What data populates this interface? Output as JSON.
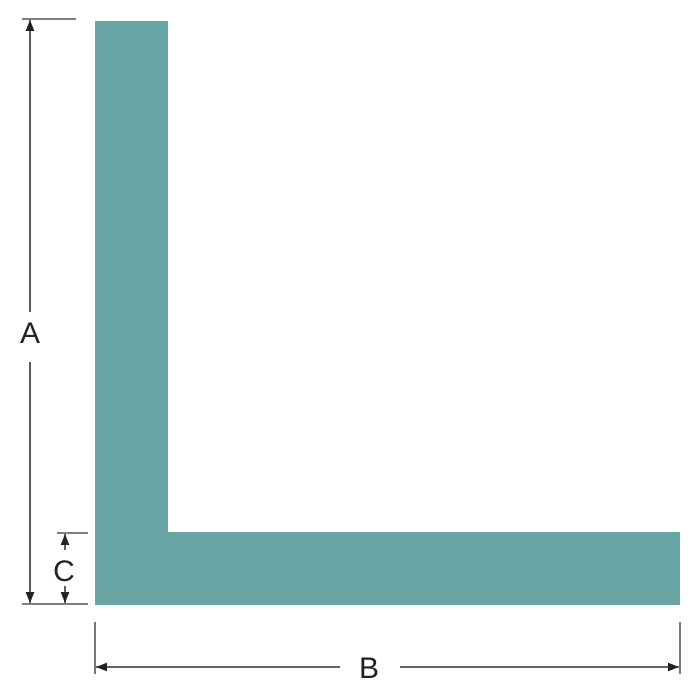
{
  "diagram": {
    "shape": "L-shaped angle profile",
    "fill_color": "#68a5a5",
    "line_color": "#333333",
    "dimensions": {
      "a": {
        "label": "A"
      },
      "b": {
        "label": "B"
      },
      "c": {
        "label": "C"
      }
    }
  }
}
